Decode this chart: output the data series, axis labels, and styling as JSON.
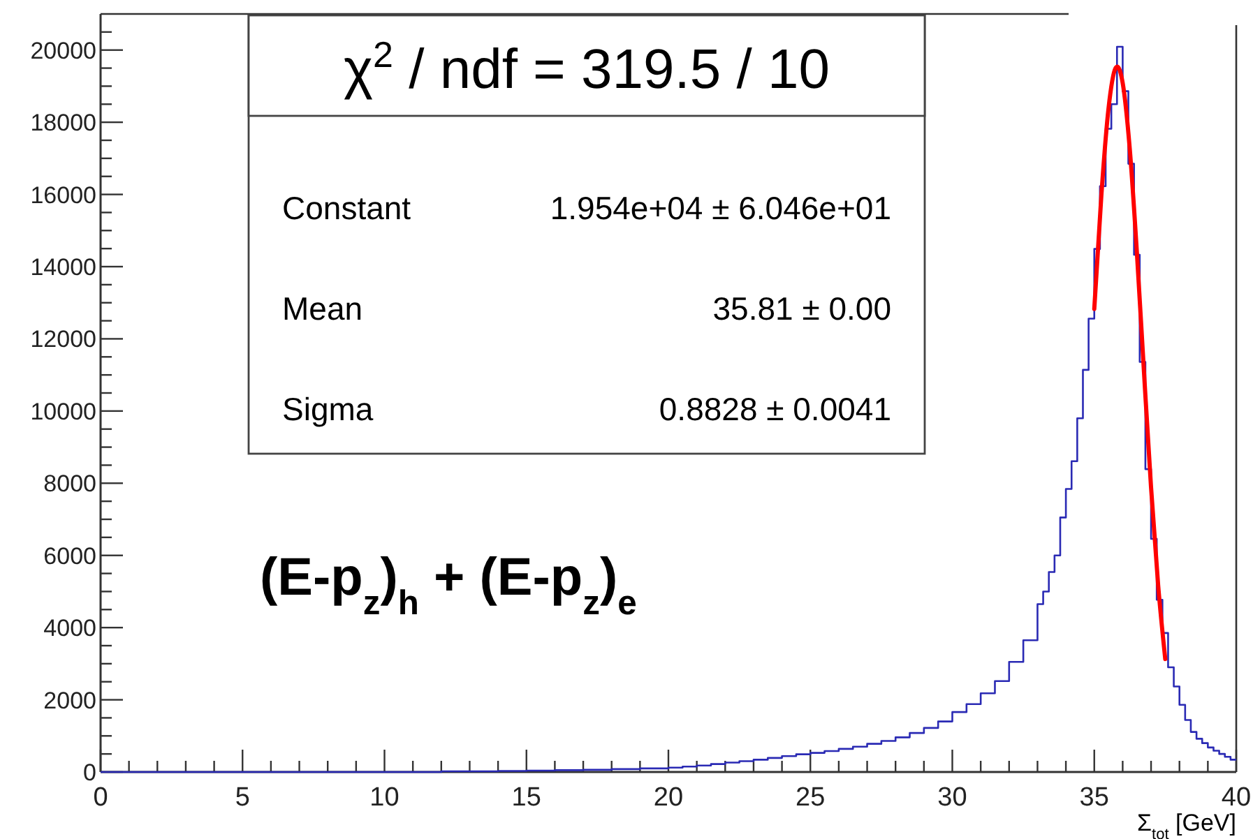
{
  "chart_data": {
    "type": "step",
    "xlabel": "Σ$_{tot}$ [GeV]",
    "series": [
      {
        "type": "step",
        "color": "#2a2ab4",
        "x": [
          0,
          12,
          13,
          14,
          15,
          16,
          17,
          18,
          19,
          20,
          20.5,
          21,
          21.5,
          22,
          22.5,
          23,
          23.5,
          24,
          24.5,
          25,
          25.5,
          26,
          26.5,
          27,
          27.5,
          28,
          28.5,
          29,
          29.5,
          30,
          30.5,
          31,
          31.5,
          32,
          32.5,
          33,
          33.2,
          33.4,
          33.6,
          33.8,
          34,
          34.2,
          34.4,
          34.6,
          34.8,
          35,
          35.2,
          35.4,
          35.6,
          35.8,
          36,
          36.2,
          36.4,
          36.6,
          36.8,
          37,
          37.2,
          37.4,
          37.6,
          37.8,
          38,
          38.2,
          38.4,
          38.6,
          38.8,
          39,
          39.2,
          39.4,
          39.6,
          39.8,
          40
        ],
        "values": [
          0,
          20,
          20,
          30,
          40,
          50,
          60,
          80,
          100,
          120,
          150,
          180,
          220,
          260,
          300,
          340,
          390,
          440,
          490,
          530,
          580,
          640,
          700,
          780,
          860,
          960,
          1080,
          1220,
          1400,
          1660,
          1880,
          2180,
          2520,
          3050,
          3650,
          4650,
          5000,
          5540,
          6000,
          7050,
          7840,
          8610,
          9800,
          11140,
          12560,
          14490,
          16230,
          17820,
          18500,
          20090,
          18860,
          16850,
          14330,
          11360,
          8390,
          6460,
          4770,
          3850,
          2900,
          2370,
          1860,
          1440,
          1110,
          920,
          800,
          680,
          590,
          500,
          420,
          340,
          340
        ]
      },
      {
        "type": "line",
        "color": "#ff0000",
        "x": [
          35,
          35.25,
          35.5,
          35.75,
          35.81,
          36,
          36.25,
          36.5,
          36.75,
          37,
          37.25,
          37.5
        ],
        "values": [
          12830,
          15980,
          18370,
          19500,
          19540,
          19090,
          17260,
          14400,
          11090,
          7880,
          5170,
          3130
        ]
      }
    ],
    "xlim": [
      0,
      40
    ],
    "ylim": [
      0,
      21000
    ],
    "xticks": [
      0,
      {
        "value": 1,
        "label": null
      },
      {
        "value": 2,
        "label": null
      },
      {
        "value": 3,
        "label": null
      },
      {
        "value": 4,
        "label": null
      },
      5,
      {
        "value": 6,
        "label": null
      },
      {
        "value": 7,
        "label": null
      },
      {
        "value": 8,
        "label": null
      },
      {
        "value": 9,
        "label": null
      },
      10,
      {
        "value": 11,
        "label": null
      },
      {
        "value": 12,
        "label": null
      },
      {
        "value": 13,
        "label": null
      },
      {
        "value": 14,
        "label": null
      },
      15,
      {
        "value": 16,
        "label": null
      },
      {
        "value": 17,
        "label": null
      },
      {
        "value": 18,
        "label": null
      },
      {
        "value": 19,
        "label": null
      },
      20,
      {
        "value": 21,
        "label": null
      },
      {
        "value": 22,
        "label": null
      },
      {
        "value": 23,
        "label": null
      },
      {
        "value": 24,
        "label": null
      },
      25,
      {
        "value": 26,
        "label": null
      },
      {
        "value": 27,
        "label": null
      },
      {
        "value": 28,
        "label": null
      },
      {
        "value": 29,
        "label": null
      },
      30,
      {
        "value": 31,
        "label": null
      },
      {
        "value": 32,
        "label": null
      },
      {
        "value": 33,
        "label": null
      },
      {
        "value": 34,
        "label": null
      },
      35,
      {
        "value": 36,
        "label": null
      },
      {
        "value": 37,
        "label": null
      },
      {
        "value": 38,
        "label": null
      },
      {
        "value": 39,
        "label": null
      },
      40
    ],
    "yticks": [
      0,
      {
        "value": 500,
        "label": null
      },
      {
        "value": 1000,
        "label": null
      },
      {
        "value": 1500,
        "label": null
      },
      2000,
      {
        "value": 2500,
        "label": null
      },
      {
        "value": 3000,
        "label": null
      },
      {
        "value": 3500,
        "label": null
      },
      4000,
      {
        "value": 4500,
        "label": null
      },
      {
        "value": 5000,
        "label": null
      },
      {
        "value": 5500,
        "label": null
      },
      6000,
      {
        "value": 6500,
        "label": null
      },
      {
        "value": 7000,
        "label": null
      },
      {
        "value": 7500,
        "label": null
      },
      8000,
      {
        "value": 8500,
        "label": null
      },
      {
        "value": 9000,
        "label": null
      },
      {
        "value": 9500,
        "label": null
      },
      10000,
      {
        "value": 10500,
        "label": null
      },
      {
        "value": 11000,
        "label": null
      },
      {
        "value": 11500,
        "label": null
      },
      12000,
      {
        "value": 12500,
        "label": null
      },
      {
        "value": 13000,
        "label": null
      },
      {
        "value": 13500,
        "label": null
      },
      14000,
      {
        "value": 14500,
        "label": null
      },
      {
        "value": 15000,
        "label": null
      },
      {
        "value": 15500,
        "label": null
      },
      16000,
      {
        "value": 16500,
        "label": null
      },
      {
        "value": 17000,
        "label": null
      },
      {
        "value": 17500,
        "label": null
      },
      18000,
      {
        "value": 18500,
        "label": null
      },
      {
        "value": 19000,
        "label": null
      },
      {
        "value": 19500,
        "label": null
      },
      20000,
      {
        "value": 20500,
        "label": null
      }
    ],
    "annotations": [
      "χ$^{2}$ / ndf = 319.5 / 10",
      "Constant",
      "1.954e+04 ± 6.046e+01",
      "Mean",
      "35.81 ± 0.00",
      "Sigma",
      "0.8828 ± 0.0041",
      "(E-p$_{z}$)$_{h}$ + (E-p$_{z}$)$_{e}$"
    ]
  }
}
